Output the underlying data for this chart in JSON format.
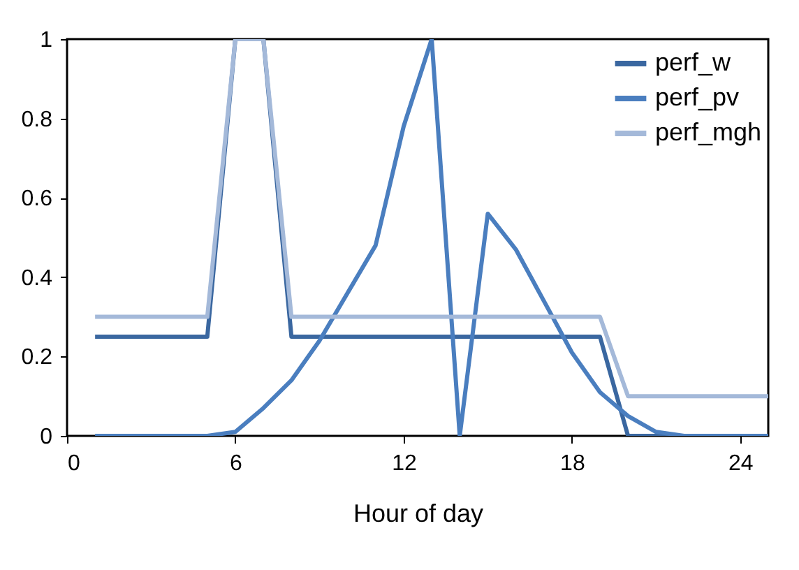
{
  "chart_data": {
    "type": "line",
    "xlabel": "Hour of day",
    "x": [
      1,
      2,
      3,
      4,
      5,
      6,
      7,
      8,
      9,
      10,
      11,
      12,
      13,
      14,
      15,
      16,
      17,
      18,
      19,
      20,
      21,
      22,
      23,
      24,
      25
    ],
    "series": [
      {
        "name": "perf_w",
        "color": "#3a67a0",
        "values": [
          0.25,
          0.25,
          0.25,
          0.25,
          0.25,
          1,
          1,
          0.25,
          0.25,
          0.25,
          0.25,
          0.25,
          0.25,
          0.25,
          0.25,
          0.25,
          0.25,
          0.25,
          0.25,
          0,
          0,
          0,
          0,
          0,
          0
        ]
      },
      {
        "name": "perf_pv",
        "color": "#4a7ebf",
        "values": [
          0,
          0,
          0,
          0,
          0,
          0.01,
          0.07,
          0.14,
          0.24,
          0.36,
          0.48,
          0.78,
          1,
          0,
          0.56,
          0.47,
          0.34,
          0.21,
          0.11,
          0.05,
          0.01,
          0,
          0,
          0,
          0
        ]
      },
      {
        "name": "perf_mgh",
        "color": "#a4b9d9",
        "values": [
          0.3,
          0.3,
          0.3,
          0.3,
          0.3,
          1,
          1,
          0.3,
          0.3,
          0.3,
          0.3,
          0.3,
          0.3,
          0.3,
          0.3,
          0.3,
          0.3,
          0.3,
          0.3,
          0.1,
          0.1,
          0.1,
          0.1,
          0.1,
          0.1
        ]
      }
    ],
    "xlim": [
      0,
      25
    ],
    "xticks": [
      0,
      6,
      12,
      18,
      24
    ],
    "ylim": [
      0,
      1
    ],
    "yticks": [
      0,
      0.2,
      0.4,
      0.6,
      0.8,
      1
    ],
    "grid": false,
    "legend": "top right",
    "marker": "none",
    "line_style": "solid"
  }
}
